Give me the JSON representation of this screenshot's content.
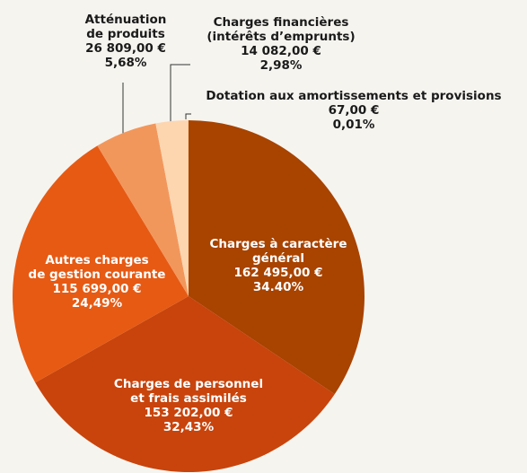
{
  "chart_data": {
    "type": "pie",
    "categories": [
      [
        "Charges à caractère",
        "général"
      ],
      [
        "Charges de personnel",
        "et frais assimilés"
      ],
      [
        "Autres charges",
        "de gestion courante"
      ],
      [
        "Atténuation",
        "de produits"
      ],
      [
        "Charges financières",
        "(intérêts d’emprunts)"
      ],
      [
        "Dotation aux amortissements et provisions"
      ]
    ],
    "values": [
      162495,
      153202,
      115699,
      26809,
      14082,
      67
    ],
    "value_labels": [
      "162 495,00 €",
      "153 202,00 €",
      "115 699,00 €",
      "26 809,00 €",
      "14 082,00 €",
      "67,00 €"
    ],
    "percent_labels": [
      "34.40%",
      "32,43%",
      "24,49%",
      "5,68%",
      "2,98%",
      "0,01%"
    ],
    "colors": [
      "#a84300",
      "#c8440c",
      "#e65a14",
      "#f2975c",
      "#fdd6b0",
      "#f0a040"
    ]
  }
}
